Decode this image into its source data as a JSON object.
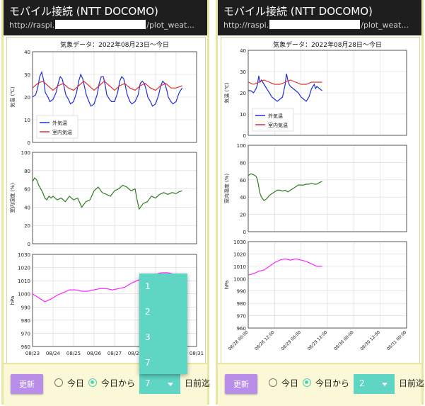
{
  "panels": [
    {
      "app_title": "モバイル接続 (NTT DOCOMO)",
      "url_prefix": "http://raspi.",
      "url_suffix": "/plot_weat...",
      "footer": {
        "update_label": "更新",
        "radio_today": "今日",
        "radio_from_today": "今日から",
        "select_value": "7",
        "suffix": "日前迄"
      },
      "dropdown_options": [
        "1",
        "2",
        "3",
        "7"
      ]
    },
    {
      "app_title": "モバイル接続 (NTT DOCOMO)",
      "url_prefix": "http://raspi.",
      "url_suffix": "/plot_weat...",
      "footer": {
        "update_label": "更新",
        "radio_today": "今日",
        "radio_from_today": "今日から",
        "select_value": "2",
        "suffix": "日前迄"
      }
    }
  ],
  "chart_data": [
    {
      "type": "line",
      "title": "気象データ：2022年08月23日～今日",
      "x_ticks": [
        "08/23",
        "08/24",
        "08/25",
        "08/26",
        "08/27",
        "08/28",
        "08/29",
        "08/30",
        "08/31"
      ],
      "subplots": [
        {
          "ylabel": "気温 (℃)",
          "ylim": [
            0,
            40
          ],
          "yticks": [
            0,
            10,
            20,
            30,
            40
          ],
          "legend": "lower-left",
          "series": [
            {
              "name": "外気温",
              "color": "#1f2fd6",
              "x": [
                0,
                0.15,
                0.25,
                0.35,
                0.45,
                0.55,
                0.62,
                0.75,
                0.85,
                1,
                1.15,
                1.25,
                1.35,
                1.45,
                1.55,
                1.62,
                1.75,
                1.85,
                2,
                2.15,
                2.25,
                2.35,
                2.45,
                2.55,
                2.62,
                2.75,
                2.85,
                3,
                3.15,
                3.25,
                3.35,
                3.45,
                3.55,
                3.62,
                3.75,
                3.85,
                4,
                4.15,
                4.25,
                4.35,
                4.45,
                4.55,
                4.62,
                4.75,
                4.85,
                5,
                5.15,
                5.25,
                5.35,
                5.45,
                5.55,
                5.62,
                5.75,
                5.85,
                6,
                6.15,
                6.25,
                6.35,
                6.45,
                6.55,
                6.62,
                6.75,
                6.85,
                7,
                7.15,
                7.3
              ],
              "values": [
                20,
                21,
                24,
                29,
                31,
                27,
                22,
                20,
                18,
                19,
                22,
                26,
                29,
                28,
                24,
                21,
                19,
                17,
                18,
                22,
                27,
                30,
                28,
                24,
                21,
                18,
                16,
                17,
                21,
                26,
                29,
                29,
                25,
                21,
                19,
                18,
                18,
                22,
                27,
                29,
                28,
                24,
                21,
                18,
                17,
                18,
                21,
                26,
                27,
                26,
                23,
                20,
                18,
                16,
                17,
                21,
                25,
                27,
                26,
                23,
                20,
                18,
                17,
                18,
                22,
                24
              ]
            },
            {
              "name": "室内気温",
              "color": "#e03030",
              "x": [
                0,
                0.25,
                0.5,
                0.75,
                1,
                1.25,
                1.5,
                1.75,
                2,
                2.25,
                2.5,
                2.75,
                3,
                3.25,
                3.5,
                3.75,
                4,
                4.25,
                4.5,
                4.75,
                5,
                5.25,
                5.5,
                5.75,
                6,
                6.25,
                6.5,
                6.75,
                7,
                7.3
              ],
              "values": [
                24,
                26,
                27,
                25,
                23,
                25,
                26,
                24,
                23,
                25,
                27,
                25,
                23,
                25,
                27,
                25,
                23,
                25,
                26,
                24,
                23,
                25,
                26,
                24,
                23,
                25,
                26,
                24,
                24,
                25
              ]
            }
          ]
        },
        {
          "ylabel": "室内湿度 (%)",
          "ylim": [
            0,
            100
          ],
          "yticks": [
            0,
            20,
            40,
            60,
            80,
            100
          ],
          "series": [
            {
              "name": "",
              "color": "#2e7d1e",
              "x": [
                0,
                0.1,
                0.2,
                0.3,
                0.4,
                0.5,
                0.6,
                0.7,
                0.8,
                0.9,
                1,
                1.2,
                1.4,
                1.6,
                1.8,
                2,
                2.2,
                2.4,
                2.6,
                2.8,
                3,
                3.2,
                3.4,
                3.6,
                3.8,
                4,
                4.2,
                4.4,
                4.6,
                4.8,
                5,
                5.1,
                5.2,
                5.4,
                5.6,
                5.8,
                6,
                6.2,
                6.4,
                6.6,
                6.8,
                7,
                7.15,
                7.3
              ],
              "values": [
                68,
                72,
                70,
                64,
                60,
                56,
                50,
                48,
                52,
                50,
                52,
                48,
                50,
                46,
                52,
                48,
                50,
                40,
                46,
                48,
                58,
                62,
                56,
                54,
                52,
                58,
                60,
                64,
                62,
                58,
                60,
                48,
                38,
                44,
                46,
                52,
                50,
                54,
                56,
                54,
                56,
                55,
                57,
                58
              ]
            }
          ]
        },
        {
          "ylabel": "hPa",
          "ylim": [
            960,
            1030
          ],
          "yticks": [
            960,
            970,
            980,
            990,
            1000,
            1010,
            1020,
            1030
          ],
          "series": [
            {
              "name": "",
              "color": "#ff22ff",
              "x": [
                0,
                0.3,
                0.6,
                0.9,
                1.2,
                1.5,
                1.8,
                2.1,
                2.4,
                2.7,
                3,
                3.3,
                3.6,
                3.9,
                4.2,
                4.5,
                4.8,
                5.1,
                5.4,
                5.7,
                6,
                6.3,
                6.6,
                6.9,
                7.2,
                7.3
              ],
              "values": [
                1000,
                997,
                994,
                996,
                999,
                1001,
                1003,
                1003,
                1002,
                1002,
                1003,
                1004,
                1004,
                1003,
                1004,
                1005,
                1008,
                1010,
                1012,
                1014,
                1015,
                1016,
                1016,
                1015,
                1011,
                1010
              ]
            }
          ]
        }
      ]
    },
    {
      "type": "line",
      "title": "気象データ：2022年08月28日～今日",
      "x_ticks": [
        "08/28 00:00",
        "08/28 12:00",
        "08/29 00:00",
        "08/29 12:00",
        "08/30 00:00",
        "08/30 12:00",
        "08/31 00:00"
      ],
      "subplots": [
        {
          "ylabel": "気温 (℃)",
          "ylim": [
            0,
            40
          ],
          "yticks": [
            0,
            10,
            20,
            30,
            40
          ],
          "legend": "lower-left",
          "series": [
            {
              "name": "外気温",
              "color": "#1f2fd6",
              "x": [
                0,
                0.1,
                0.2,
                0.3,
                0.35,
                0.4,
                0.45,
                0.5,
                0.6,
                0.7,
                0.8,
                0.9,
                1,
                1.1,
                1.2,
                1.3,
                1.4,
                1.45,
                1.5,
                1.55,
                1.6,
                1.7,
                1.8,
                1.9,
                2,
                2.1,
                2.2,
                2.3,
                2.4,
                2.5,
                2.55,
                2.6,
                2.7,
                2.8
              ],
              "values": [
                21,
                21,
                20,
                22,
                24,
                28,
                25,
                26,
                24,
                22,
                20,
                18,
                17,
                16,
                17,
                18,
                24,
                29,
                26,
                24,
                23,
                22,
                21,
                20,
                18,
                17,
                16,
                18,
                22,
                24,
                22,
                23,
                22,
                21
              ]
            },
            {
              "name": "室内気温",
              "color": "#e03030",
              "x": [
                0,
                0.2,
                0.4,
                0.6,
                0.8,
                1,
                1.2,
                1.4,
                1.6,
                1.8,
                2,
                2.2,
                2.4,
                2.6,
                2.8
              ],
              "values": [
                25,
                24,
                25,
                26,
                25,
                24,
                24,
                25,
                26,
                25,
                24,
                24,
                25,
                25,
                25
              ]
            }
          ]
        },
        {
          "ylabel": "室内湿度 (%)",
          "ylim": [
            0,
            100
          ],
          "yticks": [
            0,
            20,
            40,
            60,
            80,
            100
          ],
          "series": [
            {
              "name": "",
              "color": "#2e7d1e",
              "x": [
                0,
                0.1,
                0.2,
                0.3,
                0.35,
                0.4,
                0.45,
                0.5,
                0.6,
                0.7,
                0.8,
                0.9,
                1,
                1.1,
                1.2,
                1.3,
                1.4,
                1.5,
                1.6,
                1.7,
                1.8,
                1.9,
                2,
                2.1,
                2.2,
                2.3,
                2.4,
                2.5,
                2.6,
                2.7,
                2.8
              ],
              "values": [
                65,
                67,
                66,
                64,
                60,
                52,
                44,
                40,
                36,
                38,
                42,
                44,
                46,
                48,
                48,
                47,
                48,
                46,
                48,
                50,
                52,
                54,
                54,
                54,
                55,
                55,
                56,
                55,
                55,
                57,
                58
              ]
            }
          ]
        },
        {
          "ylabel": "hPa",
          "ylim": [
            960,
            1030
          ],
          "yticks": [
            960,
            970,
            980,
            990,
            1000,
            1010,
            1020,
            1030
          ],
          "series": [
            {
              "name": "",
              "color": "#ff22ff",
              "x": [
                0,
                0.2,
                0.4,
                0.6,
                0.8,
                1,
                1.2,
                1.4,
                1.6,
                1.8,
                2,
                2.2,
                2.4,
                2.6,
                2.8
              ],
              "values": [
                1003,
                1004,
                1006,
                1007,
                1010,
                1013,
                1015,
                1016,
                1015,
                1016,
                1015,
                1014,
                1012,
                1010,
                1010
              ]
            }
          ]
        }
      ]
    }
  ],
  "colors": {
    "accent": "#5fd5c4",
    "button": "#b98ee8",
    "footer_bg": "#faf8d6",
    "frame": "#e8e6a0"
  }
}
